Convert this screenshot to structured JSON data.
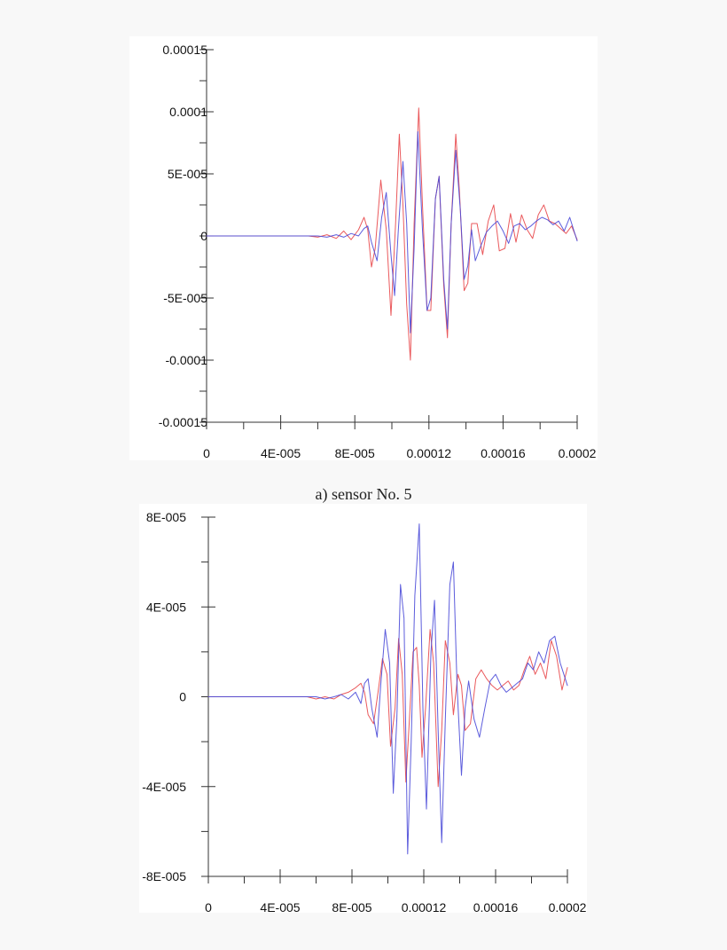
{
  "caption_a": "a) sensor No. 5",
  "colors": {
    "series_red": "#e8474a",
    "series_blue": "#4a4ad8",
    "axis": "#333333"
  },
  "chart_data": [
    {
      "type": "line",
      "title": "",
      "xlabel": "",
      "ylabel": "",
      "xlim": [
        0,
        0.0002
      ],
      "ylim": [
        -0.00015,
        0.00015
      ],
      "x_tick_labels": [
        "0",
        "4E-005",
        "8E-005",
        "0.00012",
        "0.00016",
        "0.0002"
      ],
      "x_ticks": [
        0,
        4e-05,
        8e-05,
        0.00012,
        0.00016,
        0.0002
      ],
      "y_tick_labels": [
        "0.00015",
        "0.0001",
        "5E-005",
        "0",
        "-5E-005",
        "-0.0001",
        "-0.00015"
      ],
      "y_ticks": [
        0.00015,
        0.0001,
        5e-05,
        0,
        -5e-05,
        -0.0001,
        -0.00015
      ],
      "grid": false,
      "series": [
        {
          "color": "#e8474a",
          "x": [
            0,
            2e-05,
            4e-05,
            5.5e-05,
            6e-05,
            6.5e-05,
            7e-05,
            7.4e-05,
            7.8e-05,
            8.2e-05,
            8.5e-05,
            8.7e-05,
            8.9e-05,
            9.1e-05,
            9.4e-05,
            9.7e-05,
            9.95e-05,
            0.000102,
            0.000104,
            0.000106,
            0.000108,
            0.00011,
            0.000112,
            0.0001145,
            0.0001165,
            0.000119,
            0.000121,
            0.0001235,
            0.0001255,
            0.000128,
            0.00013,
            0.000132,
            0.0001345,
            0.0001365,
            0.000139,
            0.000141,
            0.000143,
            0.000146,
            0.000149,
            0.000152,
            0.000155,
            0.000158,
            0.000161,
            0.000164,
            0.000167,
            0.00017,
            0.000173,
            0.000176,
            0.000179,
            0.000182,
            0.000185,
            0.000188,
            0.000191,
            0.000194,
            0.000197,
            0.0002
          ],
          "y": [
            0,
            0,
            0,
            0,
            -1e-06,
            1e-06,
            -2e-06,
            4e-06,
            -3e-06,
            5e-06,
            1.5e-05,
            5e-06,
            -2.5e-05,
            -1e-05,
            4.5e-05,
            5e-06,
            -6.4e-05,
            1e-05,
            8.2e-05,
            2.5e-05,
            -5.5e-05,
            -0.0001,
            1e-05,
            0.000103,
            2.5e-05,
            -6e-05,
            -6e-05,
            3e-05,
            4.8e-05,
            -4e-05,
            -8.2e-05,
            1e-05,
            8.2e-05,
            3.5e-05,
            -4.4e-05,
            -3.8e-05,
            1e-05,
            1e-05,
            -1.5e-05,
            1.2e-05,
            2.5e-05,
            -1.2e-05,
            -1e-05,
            1.8e-05,
            -5e-06,
            1.7e-05,
            5e-06,
            -2e-06,
            1.7e-05,
            2.5e-05,
            1.2e-05,
            1e-05,
            6e-06,
            2e-06,
            8e-06,
            -3e-06
          ]
        },
        {
          "color": "#4a4ad8",
          "x": [
            0,
            2e-05,
            4e-05,
            5.5e-05,
            6e-05,
            6.5e-05,
            7e-05,
            7.4e-05,
            7.8e-05,
            8.2e-05,
            8.5e-05,
            8.7e-05,
            8.9e-05,
            9.2e-05,
            9.45e-05,
            9.7e-05,
            9.95e-05,
            0.0001015,
            0.0001035,
            0.000106,
            0.000108,
            0.00011,
            0.000112,
            0.000114,
            0.0001165,
            0.000119,
            0.000121,
            0.0001235,
            0.0001255,
            0.000128,
            0.00013,
            0.000132,
            0.0001345,
            0.000137,
            0.000139,
            0.000141,
            0.000143,
            0.000145,
            0.000148,
            0.000151,
            0.000154,
            0.000157,
            0.00016,
            0.000163,
            0.000166,
            0.000169,
            0.000172,
            0.000175,
            0.000178,
            0.000181,
            0.000184,
            0.000187,
            0.00019,
            0.000193,
            0.000196,
            0.0002
          ],
          "y": [
            0,
            0,
            0,
            0,
            0,
            -1e-06,
            1e-06,
            -1e-06,
            2e-06,
            0,
            6e-06,
            8e-06,
            -5e-06,
            -2e-05,
            1.5e-05,
            3.5e-05,
            -1.5e-05,
            -4.8e-05,
            5e-06,
            6e-05,
            1e-05,
            -7.8e-05,
            -1e-05,
            8.4e-05,
            5e-06,
            -6e-05,
            -5e-05,
            3e-05,
            4.8e-05,
            -3.5e-05,
            -7.5e-05,
            1e-05,
            6.9e-05,
            2e-05,
            -3.5e-05,
            -2.4e-05,
            5e-06,
            -2e-05,
            -8e-06,
            3e-06,
            8e-06,
            1.2e-05,
            4e-06,
            -6e-06,
            8e-06,
            1e-05,
            5e-06,
            8e-06,
            1.2e-05,
            1.5e-05,
            1.3e-05,
            9e-06,
            1.2e-05,
            4e-06,
            1.5e-05,
            -4e-06
          ]
        }
      ]
    },
    {
      "type": "line",
      "title": "",
      "xlabel": "",
      "ylabel": "",
      "xlim": [
        0,
        0.0002
      ],
      "ylim": [
        -8e-05,
        8e-05
      ],
      "x_tick_labels": [
        "0",
        "4E-005",
        "8E-005",
        "0.00012",
        "0.00016",
        "0.0002"
      ],
      "x_ticks": [
        0,
        4e-05,
        8e-05,
        0.00012,
        0.00016,
        0.0002
      ],
      "y_tick_labels": [
        "8E-005",
        "4E-005",
        "0",
        "-4E-005",
        "-8E-005"
      ],
      "y_ticks": [
        8e-05,
        4e-05,
        0,
        -4e-05,
        -8e-05
      ],
      "grid": false,
      "series": [
        {
          "color": "#e8474a",
          "x": [
            0,
            2e-05,
            4e-05,
            5.5e-05,
            6e-05,
            6.5e-05,
            7e-05,
            7.4e-05,
            7.8e-05,
            8.2e-05,
            8.5e-05,
            8.7e-05,
            8.9e-05,
            9.2e-05,
            9.45e-05,
            9.7e-05,
            9.95e-05,
            0.0001015,
            0.000104,
            0.000106,
            0.000108,
            0.00011,
            0.000112,
            0.000114,
            0.000116,
            0.0001175,
            0.000119,
            0.000121,
            0.0001235,
            0.0001255,
            0.000128,
            0.00013,
            0.000132,
            0.0001345,
            0.0001365,
            0.000139,
            0.000141,
            0.000143,
            0.000146,
            0.000149,
            0.000152,
            0.000155,
            0.000158,
            0.000161,
            0.000164,
            0.000167,
            0.00017,
            0.000173,
            0.000176,
            0.000179,
            0.000182,
            0.000185,
            0.000188,
            0.000191,
            0.000194,
            0.000197,
            0.0002
          ],
          "y": [
            0,
            0,
            0,
            0,
            -1e-06,
            0,
            -1e-06,
            1e-06,
            2e-06,
            4e-06,
            6e-06,
            2e-06,
            -8e-06,
            -1.2e-05,
            2e-06,
            1.7e-05,
            1e-05,
            -2.2e-05,
            -5e-06,
            2.6e-05,
            1e-05,
            -3.8e-05,
            -1e-05,
            2e-05,
            2.2e-05,
            5e-06,
            -2.7e-05,
            -5e-06,
            3e-05,
            1.5e-05,
            -4e-05,
            -1.5e-05,
            2.5e-05,
            1.5e-05,
            -8e-06,
            1e-05,
            5e-06,
            -1.5e-05,
            -1.2e-05,
            8e-06,
            1.2e-05,
            8e-06,
            5e-06,
            3e-06,
            5e-06,
            7e-06,
            3e-06,
            5e-06,
            1.2e-05,
            1.8e-05,
            1e-05,
            1.5e-05,
            8e-06,
            2.5e-05,
            1.8e-05,
            3e-06,
            1.3e-05
          ]
        },
        {
          "color": "#4a4ad8",
          "x": [
            0,
            2e-05,
            4e-05,
            5.5e-05,
            6e-05,
            6.5e-05,
            7e-05,
            7.4e-05,
            7.8e-05,
            8.2e-05,
            8.5e-05,
            8.7e-05,
            8.9e-05,
            9.1e-05,
            9.4e-05,
            9.6e-05,
            9.85e-05,
            0.000101,
            0.000103,
            0.000105,
            0.000107,
            0.000109,
            0.000111,
            0.000113,
            0.000115,
            0.0001175,
            0.0001195,
            0.0001215,
            0.000124,
            0.000126,
            0.000128,
            0.00013,
            0.000132,
            0.0001345,
            0.0001365,
            0.0001385,
            0.000141,
            0.000143,
            0.000145,
            0.000148,
            0.000151,
            0.000154,
            0.000157,
            0.00016,
            0.000163,
            0.000166,
            0.000169,
            0.000172,
            0.000175,
            0.000178,
            0.000181,
            0.000184,
            0.000187,
            0.00019,
            0.000193,
            0.000196,
            0.0002
          ],
          "y": [
            0,
            0,
            0,
            0,
            0,
            -1e-06,
            0,
            1e-06,
            -1e-06,
            2e-06,
            -3e-06,
            6e-06,
            8e-06,
            -5e-06,
            -1.8e-05,
            5e-06,
            3e-05,
            1.5e-05,
            -4.3e-05,
            -1e-05,
            5e-05,
            3.5e-05,
            -7e-05,
            -2e-05,
            4.5e-05,
            7.7e-05,
            -5e-06,
            -5e-05,
            2e-05,
            4.3e-05,
            -1.5e-05,
            -6.5e-05,
            -1e-05,
            5e-05,
            6e-05,
            5e-06,
            -3.5e-05,
            -5e-06,
            7e-06,
            -1e-05,
            -1.8e-05,
            -5e-06,
            7e-06,
            1e-05,
            5e-06,
            2e-06,
            4e-06,
            6e-06,
            8e-06,
            1.5e-05,
            1.2e-05,
            2e-05,
            1.5e-05,
            2.5e-05,
            2.7e-05,
            1.5e-05,
            5e-06
          ]
        }
      ]
    }
  ]
}
